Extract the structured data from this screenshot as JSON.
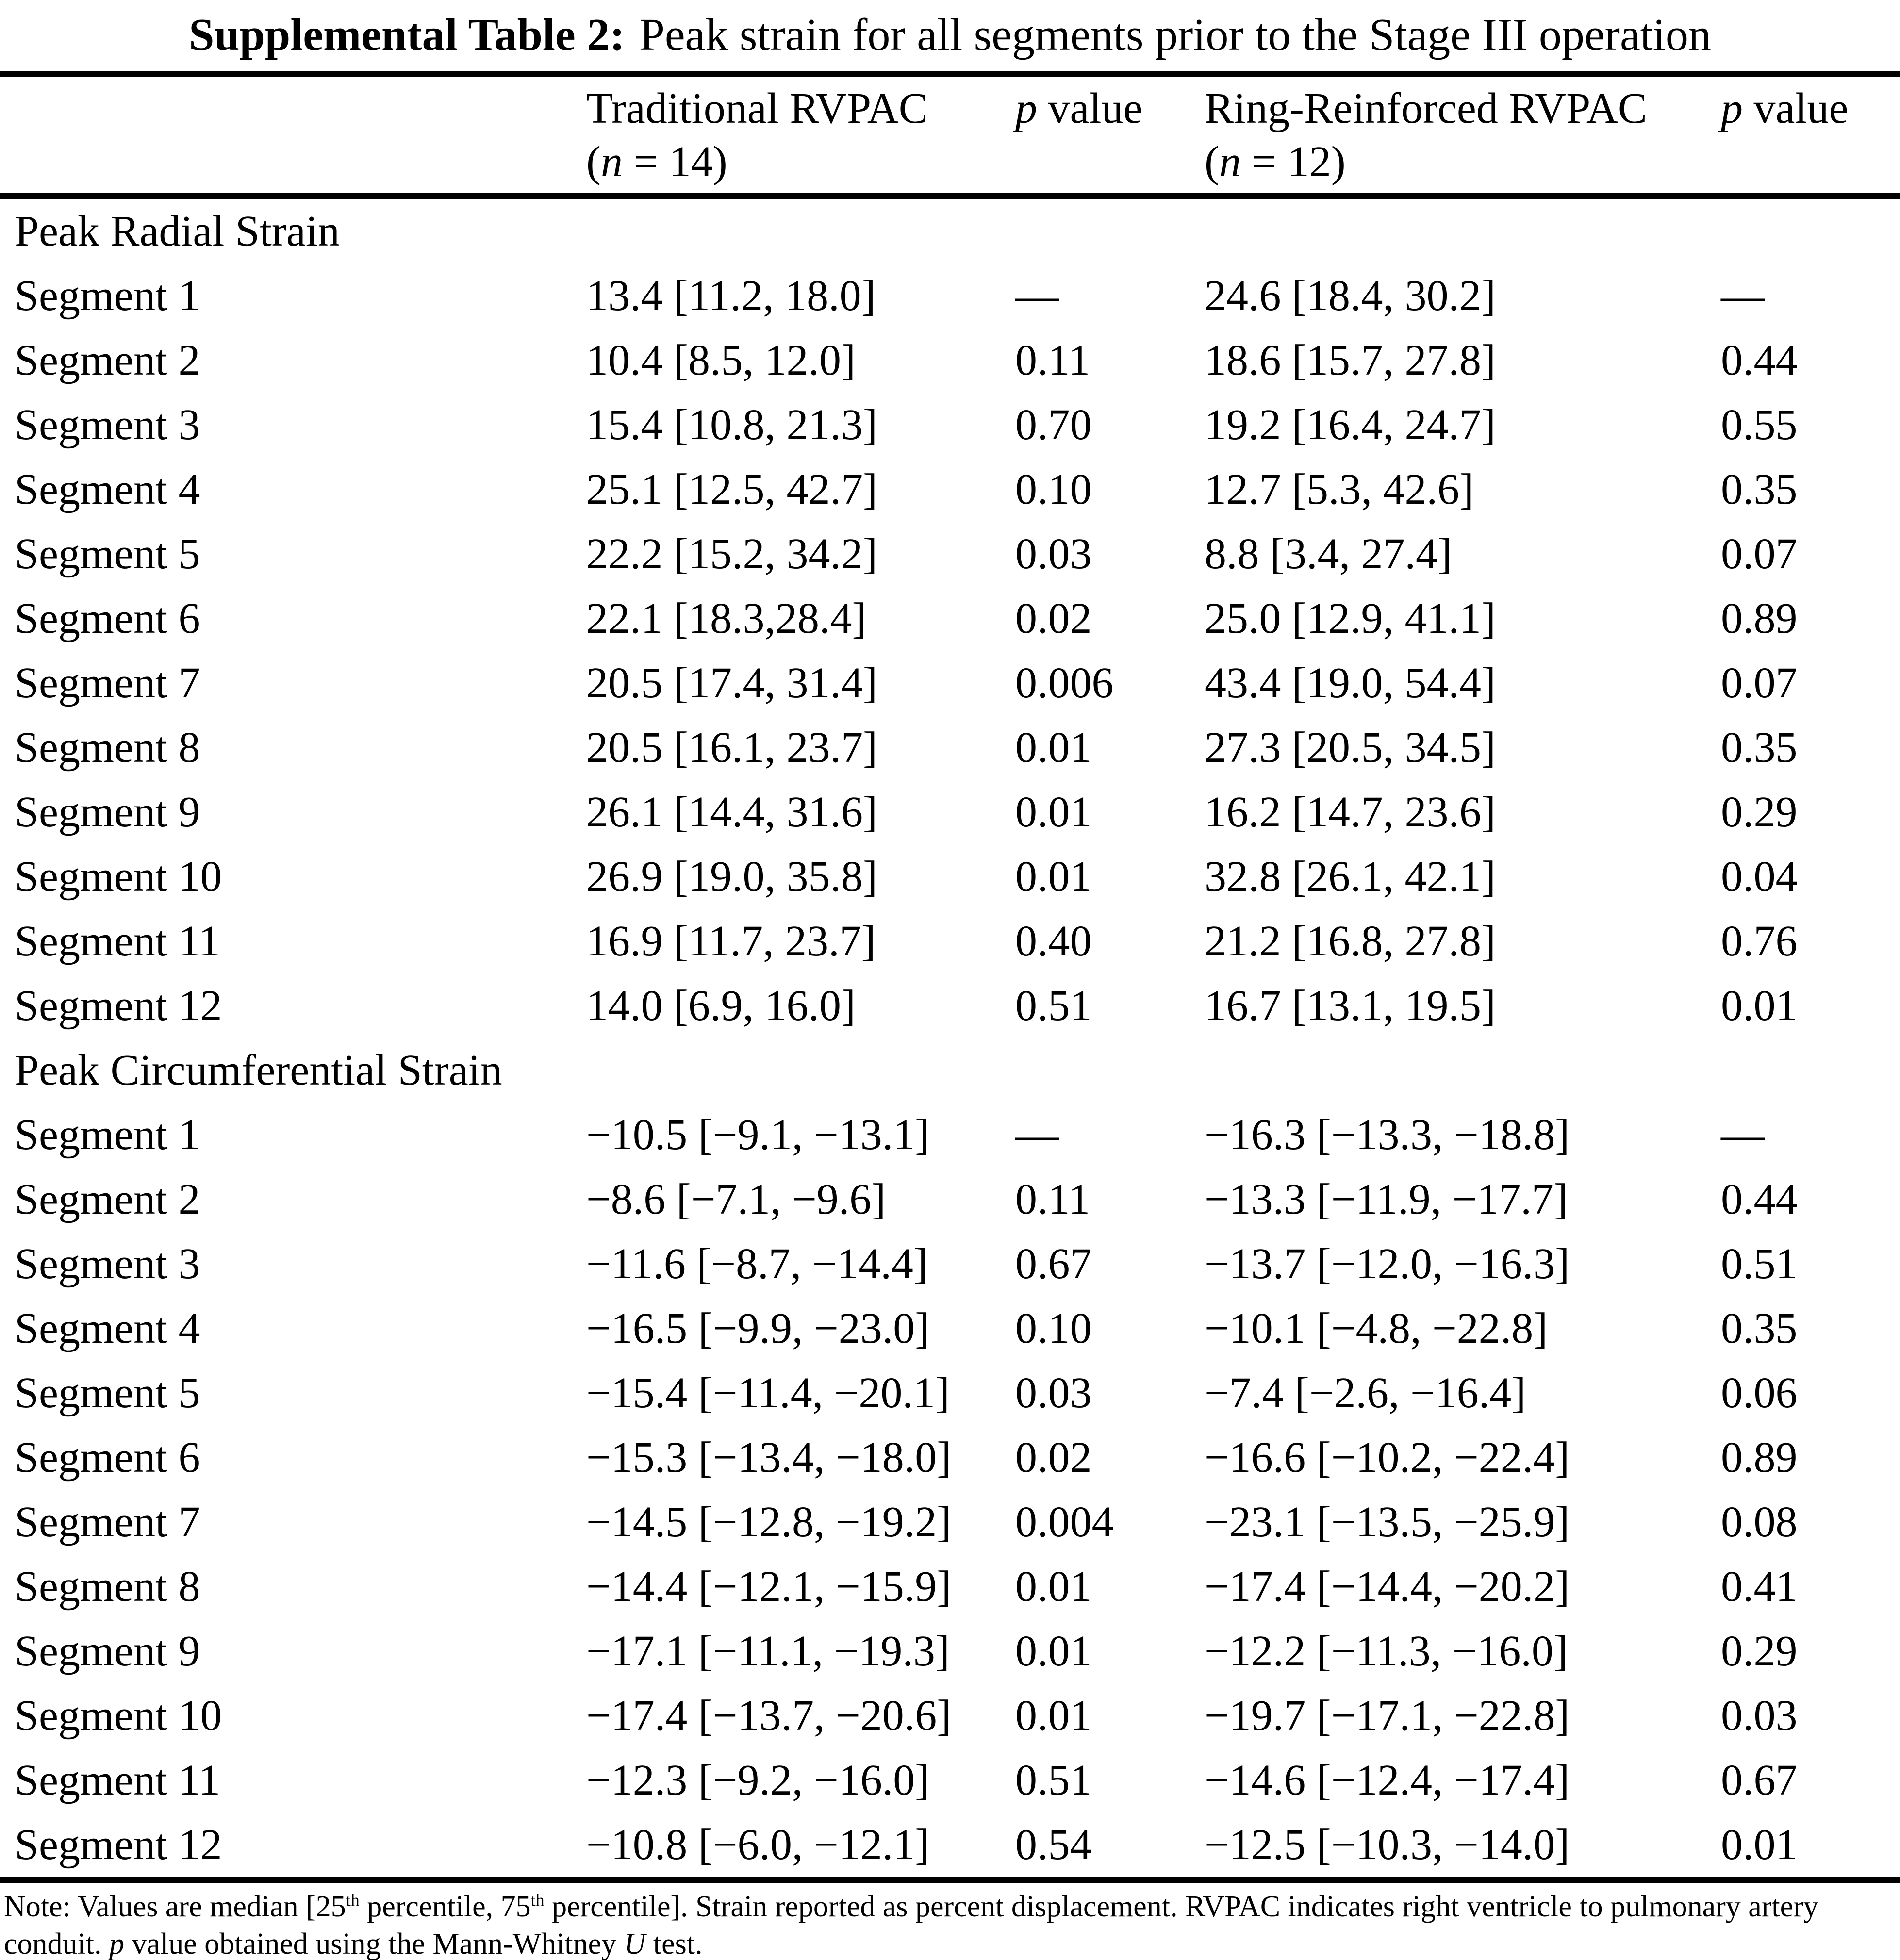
{
  "title": {
    "bold": "Supplemental Table 2:",
    "rest": "Peak strain for all segments prior to the Stage III operation"
  },
  "columns": {
    "trad": {
      "name": "Traditional RVPAC",
      "n_prefix": "(",
      "n_var": "n",
      "n_suffix": " = 14)"
    },
    "p1": {
      "var": "p",
      "rest": " value"
    },
    "ring": {
      "name": "Ring-Reinforced RVPAC",
      "n_prefix": "(",
      "n_var": "n",
      "n_suffix": " = 12)"
    },
    "p2": {
      "var": "p",
      "rest": " value"
    }
  },
  "sections": [
    {
      "header": "Peak Radial Strain",
      "rows": [
        {
          "label": "Segment 1",
          "trad": "13.4 [11.2, 18.0]",
          "p1": "—",
          "ring": "24.6 [18.4, 30.2]",
          "p2": "—"
        },
        {
          "label": "Segment 2",
          "trad": "10.4 [8.5, 12.0]",
          "p1": "0.11",
          "ring": "18.6 [15.7, 27.8]",
          "p2": "0.44"
        },
        {
          "label": "Segment 3",
          "trad": "15.4 [10.8, 21.3]",
          "p1": "0.70",
          "ring": "19.2 [16.4, 24.7]",
          "p2": "0.55"
        },
        {
          "label": "Segment 4",
          "trad": "25.1 [12.5, 42.7]",
          "p1": "0.10",
          "ring": "12.7 [5.3, 42.6]",
          "p2": "0.35"
        },
        {
          "label": "Segment 5",
          "trad": "22.2 [15.2, 34.2]",
          "p1": "0.03",
          "ring": "8.8 [3.4, 27.4]",
          "p2": "0.07"
        },
        {
          "label": "Segment 6",
          "trad": "22.1 [18.3,28.4]",
          "p1": "0.02",
          "ring": "25.0 [12.9, 41.1]",
          "p2": "0.89"
        },
        {
          "label": "Segment 7",
          "trad": "20.5 [17.4, 31.4]",
          "p1": "0.006",
          "ring": "43.4 [19.0, 54.4]",
          "p2": "0.07"
        },
        {
          "label": "Segment 8",
          "trad": "20.5 [16.1, 23.7]",
          "p1": "0.01",
          "ring": "27.3 [20.5, 34.5]",
          "p2": "0.35"
        },
        {
          "label": "Segment 9",
          "trad": "26.1 [14.4, 31.6]",
          "p1": "0.01",
          "ring": "16.2 [14.7, 23.6]",
          "p2": "0.29"
        },
        {
          "label": "Segment 10",
          "trad": "26.9 [19.0, 35.8]",
          "p1": "0.01",
          "ring": "32.8 [26.1, 42.1]",
          "p2": "0.04"
        },
        {
          "label": "Segment 11",
          "trad": "16.9 [11.7, 23.7]",
          "p1": "0.40",
          "ring": "21.2 [16.8, 27.8]",
          "p2": "0.76"
        },
        {
          "label": "Segment 12",
          "trad": "14.0 [6.9, 16.0]",
          "p1": "0.51",
          "ring": "16.7 [13.1, 19.5]",
          "p2": "0.01"
        }
      ]
    },
    {
      "header": "Peak Circumferential Strain",
      "rows": [
        {
          "label": "Segment 1",
          "trad": "−10.5 [−9.1, −13.1]",
          "p1": "—",
          "ring": "−16.3 [−13.3, −18.8]",
          "p2": "—"
        },
        {
          "label": "Segment 2",
          "trad": "−8.6 [−7.1, −9.6]",
          "p1": "0.11",
          "ring": "−13.3 [−11.9, −17.7]",
          "p2": "0.44"
        },
        {
          "label": "Segment 3",
          "trad": "−11.6 [−8.7, −14.4]",
          "p1": "0.67",
          "ring": "−13.7 [−12.0, −16.3]",
          "p2": "0.51"
        },
        {
          "label": "Segment 4",
          "trad": "−16.5 [−9.9, −23.0]",
          "p1": "0.10",
          "ring": "−10.1 [−4.8, −22.8]",
          "p2": "0.35"
        },
        {
          "label": "Segment 5",
          "trad": "−15.4 [−11.4, −20.1]",
          "p1": "0.03",
          "ring": "−7.4 [−2.6, −16.4]",
          "p2": "0.06"
        },
        {
          "label": "Segment 6",
          "trad": "−15.3 [−13.4, −18.0]",
          "p1": "0.02",
          "ring": "−16.6 [−10.2, −22.4]",
          "p2": "0.89"
        },
        {
          "label": "Segment 7",
          "trad": "−14.5 [−12.8, −19.2]",
          "p1": "0.004",
          "ring": "−23.1 [−13.5, −25.9]",
          "p2": "0.08"
        },
        {
          "label": "Segment 8",
          "trad": "−14.4 [−12.1, −15.9]",
          "p1": "0.01",
          "ring": "−17.4 [−14.4, −20.2]",
          "p2": "0.41"
        },
        {
          "label": "Segment 9",
          "trad": "−17.1 [−11.1, −19.3]",
          "p1": "0.01",
          "ring": "−12.2 [−11.3, −16.0]",
          "p2": "0.29"
        },
        {
          "label": "Segment 10",
          "trad": "−17.4 [−13.7, −20.6]",
          "p1": "0.01",
          "ring": "−19.7 [−17.1, −22.8]",
          "p2": "0.03"
        },
        {
          "label": "Segment 11",
          "trad": "−12.3 [−9.2, −16.0]",
          "p1": "0.51",
          "ring": "−14.6 [−12.4, −17.4]",
          "p2": "0.67"
        },
        {
          "label": "Segment 12",
          "trad": "−10.8 [−6.0, −12.1]",
          "p1": "0.54",
          "ring": "−12.5 [−10.3, −14.0]",
          "p2": "0.01"
        }
      ]
    }
  ],
  "note": {
    "segments": [
      {
        "t": "Note: Values are median [25",
        "s": "n"
      },
      {
        "t": "th",
        "s": "sup"
      },
      {
        "t": " percentile, 75",
        "s": "n"
      },
      {
        "t": "th",
        "s": "sup"
      },
      {
        "t": " percentile]. Strain reported as percent displacement. RVPAC indicates right ventricle to pulmonary artery conduit. ",
        "s": "n"
      },
      {
        "t": "p",
        "s": "i"
      },
      {
        "t": " value obtained using the Mann-Whitney ",
        "s": "n"
      },
      {
        "t": "U",
        "s": "i"
      },
      {
        "t": " test.",
        "s": "n"
      }
    ]
  }
}
